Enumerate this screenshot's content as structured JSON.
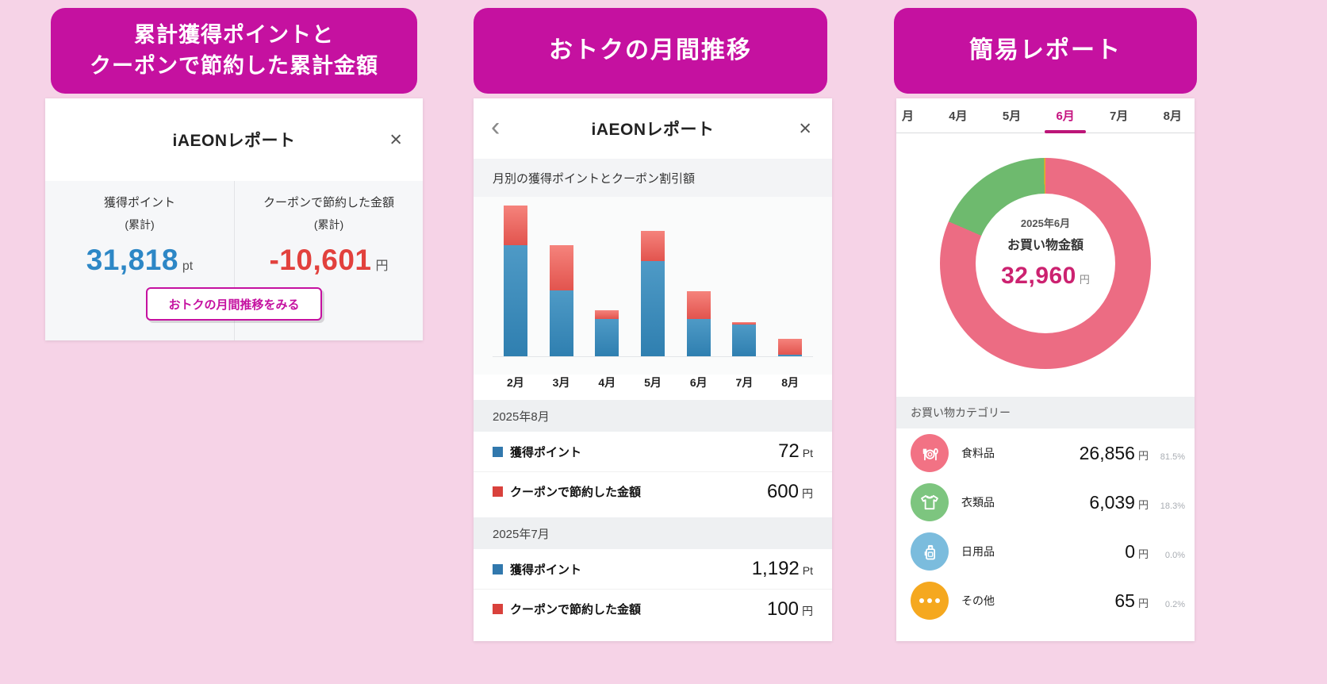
{
  "page": {
    "background": "#f6d3e7",
    "accent": "#c511a0"
  },
  "left_panel": {
    "banner_line1": "累計獲得ポイントと",
    "banner_line2": "クーポンで節約した累計金額",
    "card": {
      "title": "iAEONレポート",
      "close_symbol": "×",
      "stats": [
        {
          "label": "獲得ポイント",
          "sublabel": "(累計)",
          "value": "31,818",
          "unit": "pt",
          "color": "#2d87c6"
        },
        {
          "label": "クーポンで節約した金額",
          "sublabel": "(累計)",
          "value": "-10,601",
          "unit": "円",
          "color": "#e2413d"
        }
      ],
      "button_label": "おトクの月間推移をみる"
    }
  },
  "middle_panel": {
    "banner": "おトクの月間推移",
    "card": {
      "back_symbol": "‹",
      "title": "iAEONレポート",
      "close_symbol": "×",
      "subtitle": "月別の獲得ポイントとクーポン割引額",
      "sections": [
        {
          "month": "2025年8月",
          "rows": [
            {
              "label": "獲得ポイント",
              "value": "72",
              "unit": "Pt",
              "color": "#3178ad"
            },
            {
              "label": "クーポンで節約した金額",
              "value": "600",
              "unit": "円",
              "color": "#d9413c"
            }
          ]
        },
        {
          "month": "2025年7月",
          "rows": [
            {
              "label": "獲得ポイント",
              "value": "1,192",
              "unit": "Pt",
              "color": "#3178ad"
            },
            {
              "label": "クーポンで節約した金額",
              "value": "100",
              "unit": "円",
              "color": "#d9413c"
            }
          ]
        }
      ]
    }
  },
  "right_panel": {
    "banner": "簡易レポート",
    "card": {
      "tabs": [
        {
          "label": "月",
          "active": false
        },
        {
          "label": "4月",
          "active": false
        },
        {
          "label": "5月",
          "active": false
        },
        {
          "label": "6月",
          "active": true
        },
        {
          "label": "7月",
          "active": false
        },
        {
          "label": "8月",
          "active": false
        }
      ],
      "donut_center": {
        "month": "2025年6月",
        "label": "お買い物金額",
        "value": "32,960",
        "unit": "円"
      },
      "category_header": "お買い物カテゴリー",
      "categories": [
        {
          "name": "食料品",
          "value": "26,856",
          "unit": "円",
          "pct": "81.5%",
          "icon": "dining-icon",
          "color": "#f27284"
        },
        {
          "name": "衣類品",
          "value": "6,039",
          "unit": "円",
          "pct": "18.3%",
          "icon": "tshirt-icon",
          "color": "#7dc57f"
        },
        {
          "name": "日用品",
          "value": "0",
          "unit": "円",
          "pct": "0.0%",
          "icon": "detergent-icon",
          "color": "#7bbcdd"
        },
        {
          "name": "その他",
          "value": "65",
          "unit": "円",
          "pct": "0.2%",
          "icon": "ellipsis-icon",
          "color": "#f5a81f"
        }
      ]
    }
  },
  "chart_data": [
    {
      "type": "bar",
      "stacked": true,
      "title": "月別の獲得ポイントとクーポン割引額",
      "categories": [
        "2月",
        "3月",
        "4月",
        "5月",
        "6月",
        "7月",
        "8月"
      ],
      "series": [
        {
          "name": "獲得ポイント",
          "color": "#3585b5",
          "values": [
            4200,
            2500,
            1400,
            3600,
            1400,
            1192,
            72
          ]
        },
        {
          "name": "クーポンで節約した金額",
          "color": "#e8534f",
          "values": [
            1500,
            1700,
            330,
            1150,
            1050,
            100,
            600
          ]
        }
      ],
      "ylim": [
        0,
        6000
      ],
      "grid": false,
      "legend_position": "rows-below-chart",
      "note_exact_values": "7月: 獲得ポイント 1,192 Pt / クーポン 100 円; 8月: 獲得ポイント 72 Pt / クーポン 600 円; other months estimated from bar heights"
    },
    {
      "type": "pie",
      "donut": true,
      "title": "2025年6月 お買い物金額 32,960 円",
      "labels": [
        "食料品",
        "衣類品",
        "日用品",
        "その他"
      ],
      "values_pct": [
        81.5,
        18.3,
        0.0,
        0.2
      ],
      "values_yen": [
        26856,
        6039,
        0,
        65
      ],
      "colors": [
        "#ec6c83",
        "#6eba6e",
        "#7bbcdd",
        "#f5a81f"
      ],
      "start_angle": "top",
      "direction": "clockwise"
    }
  ]
}
